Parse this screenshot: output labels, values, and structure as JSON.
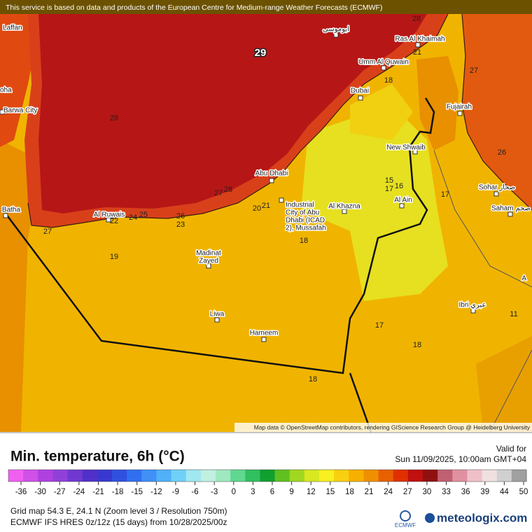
{
  "banner": "This service is based on data and products of the European Centre for Medium-range Weather Forecasts (ECMWF)",
  "attribution": "Map data © OpenStreetMap contributors, rendering GIScience Research Group @ Heidelberg University",
  "map": {
    "temperature_labels": [
      29,
      28,
      21,
      18,
      27,
      28,
      26,
      15,
      17,
      16,
      17,
      27,
      28,
      20,
      21,
      24,
      25,
      22,
      26,
      23,
      27,
      18,
      19,
      17,
      18,
      18,
      11
    ],
    "places": [
      {
        "lines": [
          "Laffan"
        ]
      },
      {
        "lines": [
          "ابوموسى"
        ]
      },
      {
        "lines": [
          "Ras Al Khaimah"
        ]
      },
      {
        "lines": [
          "Umm Al Quwain"
        ]
      },
      {
        "lines": [
          "oha"
        ]
      },
      {
        "lines": [
          "Dubai"
        ]
      },
      {
        "lines": [
          "Barwa City"
        ]
      },
      {
        "lines": [
          "Fujairah"
        ]
      },
      {
        "lines": [
          "New Shwaib"
        ]
      },
      {
        "lines": [
          "Abu Dhabi"
        ]
      },
      {
        "lines": [
          "Industrial",
          "City of Abu",
          "Dhabi (ICAD",
          "2), Mussafah"
        ]
      },
      {
        "lines": [
          "Al Khazna"
        ]
      },
      {
        "lines": [
          "Al Ain"
        ]
      },
      {
        "lines": [
          "Sohar صحار"
        ]
      },
      {
        "lines": [
          "Saham صحم"
        ]
      },
      {
        "lines": [
          "Al Ruwais"
        ]
      },
      {
        "lines": [
          "Batha"
        ]
      },
      {
        "lines": [
          "Madinat",
          "Zayed"
        ]
      },
      {
        "lines": [
          "Liwa"
        ]
      },
      {
        "lines": [
          "Hameem"
        ]
      },
      {
        "lines": [
          "Ibri عبري"
        ]
      },
      {
        "lines": [
          "A"
        ]
      }
    ]
  },
  "legend": {
    "title": "Min. temperature, 6h (°C)",
    "valid_label": "Valid for",
    "valid_time": "Sun 11/09/2025, 10:00am GMT+04",
    "ticks": [
      -36,
      -30,
      -27,
      -24,
      -21,
      -18,
      -15,
      -12,
      -9,
      -6,
      -3,
      0,
      3,
      6,
      9,
      12,
      15,
      18,
      21,
      24,
      27,
      30,
      33,
      36,
      39,
      44,
      50
    ],
    "colors": [
      "#f060f0",
      "#d050e8",
      "#b040e0",
      "#9040d8",
      "#7038d0",
      "#5030c8",
      "#3838d0",
      "#3050e0",
      "#3070f0",
      "#4090f8",
      "#50b0f8",
      "#70d0f8",
      "#a0e8f0",
      "#c0f0e0",
      "#a0e8c0",
      "#60d890",
      "#30c060",
      "#10a030",
      "#60c020",
      "#a0d820",
      "#d8e820",
      "#f8f020",
      "#f8d010",
      "#f8b000",
      "#f09000",
      "#e86000",
      "#e03000",
      "#c01010",
      "#901010",
      "#c06070",
      "#e090a0",
      "#f0c0c8",
      "#f0e0e0",
      "#d0d0d0",
      "#a0a0a0"
    ]
  },
  "footer": {
    "grid_info": "Grid map 54.3 E, 24.1 N (Zoom level 3 / Resolution 750m)",
    "model_info": "ECMWF IFS HRES 0z/12z (15 days) from  10/28/2025/00z",
    "ecmwf_logo": "ECMWF",
    "brand": "meteologix.com"
  }
}
